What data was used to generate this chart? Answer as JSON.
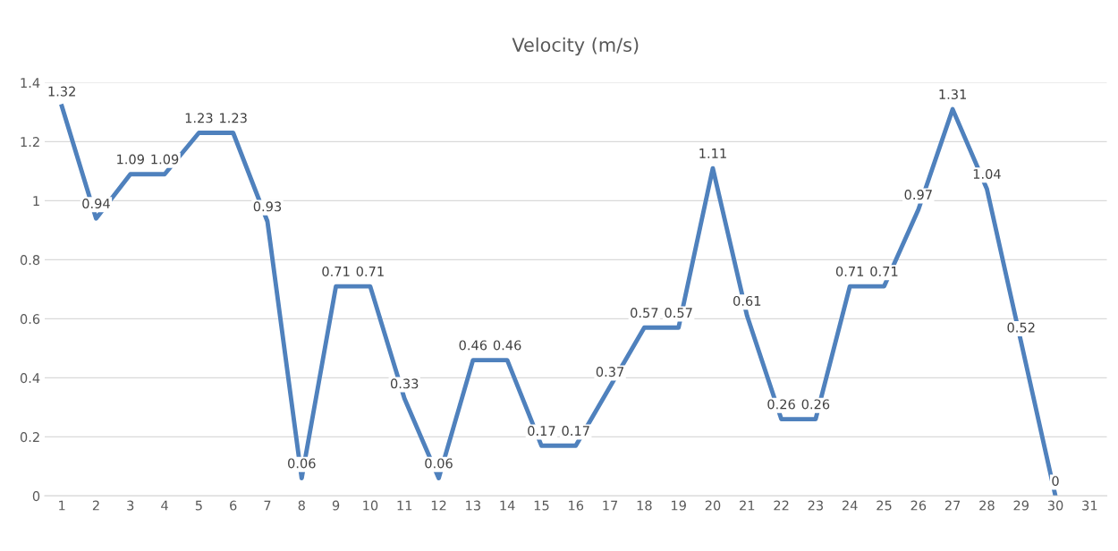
{
  "chart_data": {
    "type": "line",
    "title": "Velocity (m/s)",
    "categories": [
      "1",
      "2",
      "3",
      "4",
      "5",
      "6",
      "7",
      "8",
      "9",
      "10",
      "11",
      "12",
      "13",
      "14",
      "15",
      "16",
      "17",
      "18",
      "19",
      "20",
      "21",
      "22",
      "23",
      "24",
      "25",
      "26",
      "27",
      "28",
      "29",
      "30",
      "31"
    ],
    "series": [
      {
        "color": "#4f81bd",
        "values": [
          1.32,
          0.94,
          1.09,
          1.09,
          1.23,
          1.23,
          0.93,
          0.06,
          0.71,
          0.71,
          0.33,
          0.06,
          0.46,
          0.46,
          0.17,
          0.17,
          0.37,
          0.57,
          0.57,
          1.11,
          0.61,
          0.26,
          0.26,
          0.71,
          0.71,
          0.97,
          1.31,
          1.04,
          0.52,
          0,
          null
        ]
      }
    ],
    "ylim": [
      0,
      1.4
    ],
    "yticks": [
      0,
      0.2,
      0.4,
      0.6,
      0.8,
      1,
      1.2,
      1.4
    ],
    "grid": "y",
    "data_labels": true,
    "marker": "none",
    "line_style": "solid"
  }
}
